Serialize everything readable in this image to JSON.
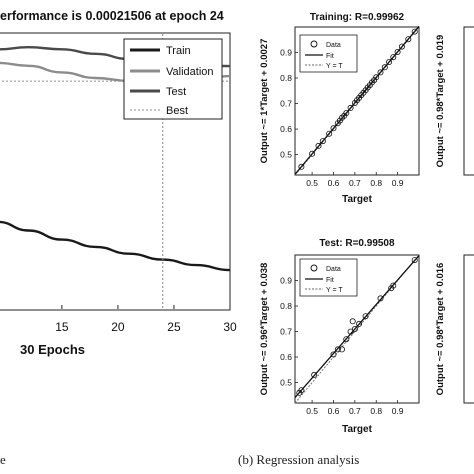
{
  "chart_data": [
    {
      "type": "line",
      "title": "erformance is 0.00021506 at epoch 24",
      "xlabel": "30 Epochs",
      "x_ticks": [
        "15",
        "20",
        "25",
        "30"
      ],
      "xlim": [
        9.3,
        30
      ],
      "yscale": "log",
      "series": [
        {
          "name": "Train",
          "color": "#1a1a1a",
          "x": [
            9.3,
            12,
            15,
            18,
            21,
            24,
            27,
            30
          ],
          "y": [
            1e-05,
            8.3e-06,
            6.8e-06,
            5.8e-06,
            5e-06,
            4.4e-06,
            3.9e-06,
            3.5e-06
          ]
        },
        {
          "name": "Validation",
          "color": "#8c8c8c",
          "x": [
            9.3,
            12,
            15,
            18,
            21,
            24,
            27,
            30
          ],
          "y": [
            0.00032,
            0.0003,
            0.00026,
            0.00023,
            0.000216,
            0.000215,
            0.00022,
            0.00024
          ]
        },
        {
          "name": "Test",
          "color": "#4a4a4a",
          "x": [
            9.3,
            12,
            15,
            18,
            21,
            24,
            27,
            30
          ],
          "y": [
            0.00043,
            0.00045,
            0.00043,
            0.00039,
            0.000348,
            0.000318,
            0.000303,
            0.000298
          ]
        },
        {
          "name": "Best",
          "color": "#8c8c8c",
          "style": "dotted",
          "y_constant": 0.00021506
        }
      ],
      "best_epoch": 24,
      "legend": [
        "Train",
        "Validation",
        "Test",
        "Best"
      ],
      "legend_position": "top-right"
    },
    {
      "type": "scatter",
      "title": "Training: R=0.99962",
      "xlabel": "Target",
      "ylabel": "Output ~= 1*Target + 0.0027",
      "x_ticks": [
        "0.5",
        "0.6",
        "0.7",
        "0.8",
        "0.9"
      ],
      "y_ticks": [
        "0.9",
        "0.8",
        "0.7",
        "0.6",
        "0.5"
      ],
      "xlim": [
        0.42,
        1.0
      ],
      "ylim": [
        0.42,
        1.0
      ],
      "legend": [
        "Data",
        "Fit",
        "Y = T"
      ],
      "legend_position": "top-left",
      "fit": {
        "slope": 1.0,
        "intercept": 0.0027
      },
      "x": [
        0.45,
        0.5,
        0.53,
        0.55,
        0.58,
        0.6,
        0.62,
        0.63,
        0.64,
        0.65,
        0.66,
        0.68,
        0.7,
        0.71,
        0.72,
        0.73,
        0.74,
        0.75,
        0.76,
        0.77,
        0.78,
        0.79,
        0.8,
        0.82,
        0.84,
        0.86,
        0.88,
        0.9,
        0.92,
        0.95,
        0.98
      ],
      "y": [
        0.452,
        0.503,
        0.534,
        0.553,
        0.582,
        0.603,
        0.623,
        0.633,
        0.644,
        0.652,
        0.663,
        0.683,
        0.702,
        0.713,
        0.722,
        0.733,
        0.742,
        0.752,
        0.763,
        0.772,
        0.783,
        0.792,
        0.803,
        0.822,
        0.842,
        0.863,
        0.882,
        0.902,
        0.923,
        0.952,
        0.982
      ]
    },
    {
      "type": "scatter",
      "title": "Test: R=0.99508",
      "xlabel": "Target",
      "ylabel": "Output ~= 0.96*Target + 0.038",
      "x_ticks": [
        "0.5",
        "0.6",
        "0.7",
        "0.8",
        "0.9"
      ],
      "y_ticks": [
        "0.9",
        "0.8",
        "0.7",
        "0.6",
        "0.5"
      ],
      "xlim": [
        0.42,
        1.0
      ],
      "ylim": [
        0.42,
        1.0
      ],
      "legend": [
        "Data",
        "Fit",
        "Y = T"
      ],
      "legend_position": "top-left",
      "fit": {
        "slope": 0.96,
        "intercept": 0.038
      },
      "x": [
        0.44,
        0.45,
        0.51,
        0.6,
        0.62,
        0.64,
        0.66,
        0.68,
        0.69,
        0.7,
        0.72,
        0.75,
        0.82,
        0.87,
        0.88,
        0.98
      ],
      "y": [
        0.46,
        0.47,
        0.53,
        0.61,
        0.63,
        0.63,
        0.67,
        0.7,
        0.74,
        0.71,
        0.73,
        0.76,
        0.83,
        0.87,
        0.88,
        0.98
      ]
    },
    {
      "type": "scatter",
      "note": "partially visible panel",
      "ylabel": "Output ~= 0.98*Target + 0.019"
    },
    {
      "type": "scatter",
      "note": "partially visible panel",
      "ylabel": "Output ~= 0.98*Target + 0.016"
    }
  ],
  "captions": {
    "left": "e",
    "right": "(b) Regression analysis"
  }
}
